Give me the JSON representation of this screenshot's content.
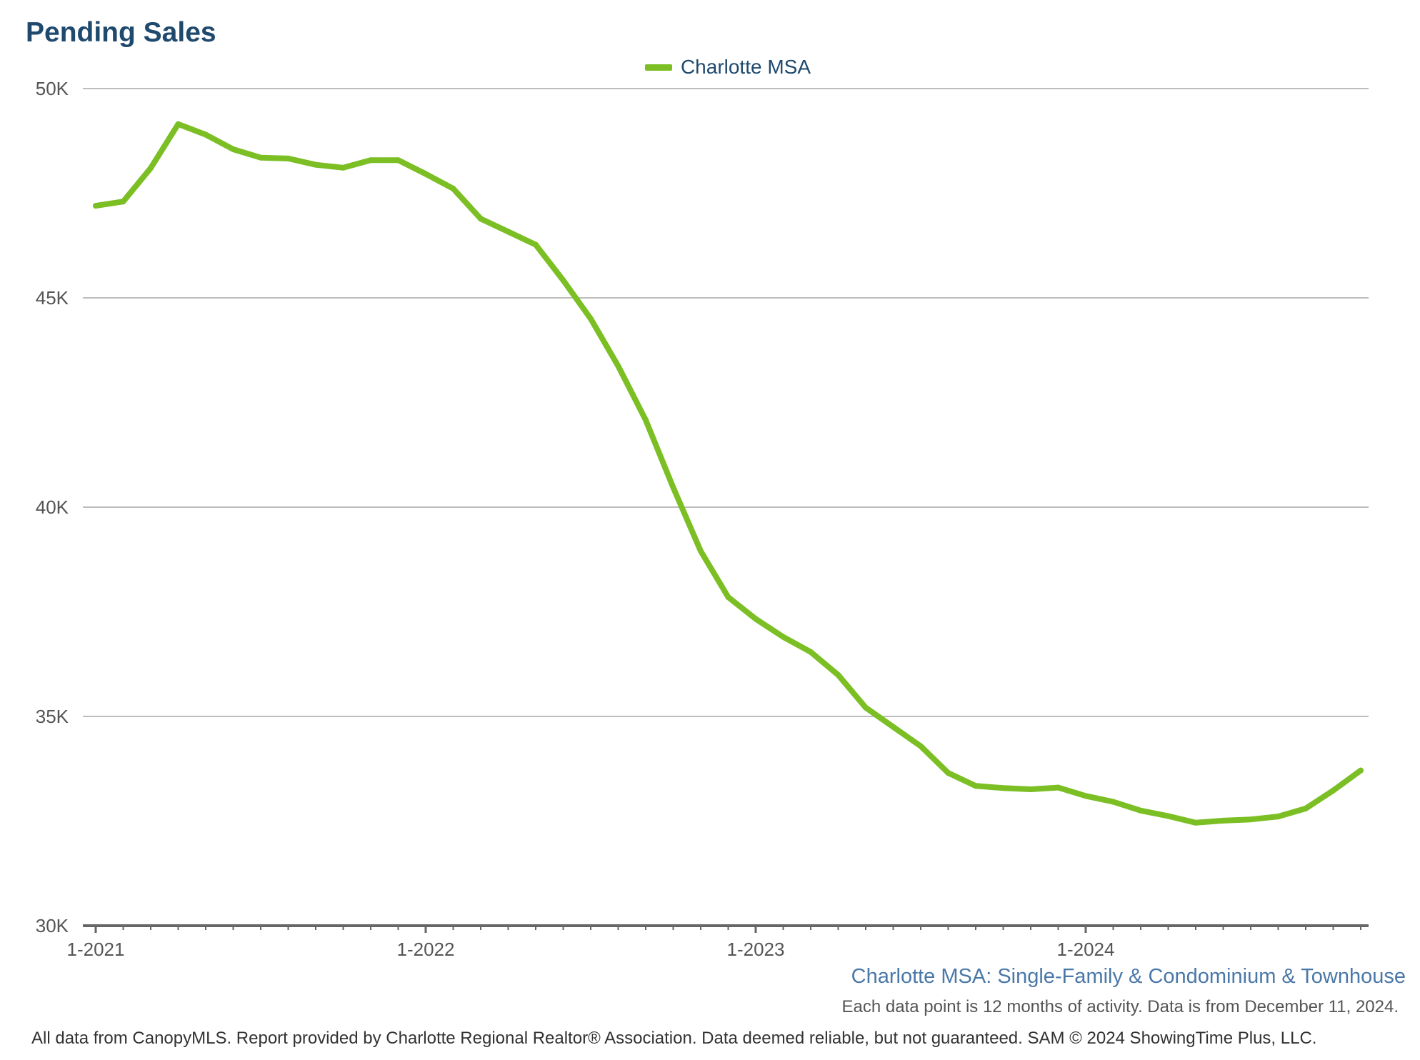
{
  "chart_data": {
    "type": "line",
    "title": "Pending Sales",
    "subtitle": "Charlotte MSA: Single-Family & Condominium & Townhouse",
    "note": "Each data point is 12 months of activity. Data is from December 11, 2024.",
    "footer": "All data from CanopyMLS. Report provided by Charlotte Regional Realtor® Association. Data deemed reliable, but not guaranteed. SAM © 2024 ShowingTime Plus, LLC.",
    "ylim": [
      30000,
      50000
    ],
    "yticks": [
      30000,
      35000,
      40000,
      45000,
      50000
    ],
    "ytick_labels": [
      "30K",
      "35K",
      "40K",
      "45K",
      "50K"
    ],
    "xticks": [
      "1-2021",
      "1-2022",
      "1-2023",
      "1-2024"
    ],
    "grid": true,
    "legend_position": "top-center",
    "colors": {
      "series": "#7bbf24",
      "title": "#1f4a6e",
      "subtitle": "#4a78a8"
    },
    "x": [
      "2021-01",
      "2021-02",
      "2021-03",
      "2021-04",
      "2021-05",
      "2021-06",
      "2021-07",
      "2021-08",
      "2021-09",
      "2021-10",
      "2021-11",
      "2021-12",
      "2022-01",
      "2022-02",
      "2022-03",
      "2022-04",
      "2022-05",
      "2022-06",
      "2022-07",
      "2022-08",
      "2022-09",
      "2022-10",
      "2022-11",
      "2022-12",
      "2023-01",
      "2023-02",
      "2023-03",
      "2023-04",
      "2023-05",
      "2023-06",
      "2023-07",
      "2023-08",
      "2023-09",
      "2023-10",
      "2023-11",
      "2023-12",
      "2024-01",
      "2024-02",
      "2024-03",
      "2024-04",
      "2024-05",
      "2024-06",
      "2024-07",
      "2024-08",
      "2024-09",
      "2024-10",
      "2024-11"
    ],
    "series": [
      {
        "name": "Charlotte MSA",
        "values": [
          47200,
          47300,
          48100,
          49150,
          48900,
          48550,
          48350,
          48330,
          48180,
          48110,
          48290,
          48290,
          47960,
          47610,
          46890,
          46580,
          46270,
          45420,
          44500,
          43370,
          42080,
          40470,
          38950,
          37850,
          37330,
          36900,
          36540,
          35990,
          35210,
          34750,
          34290,
          33650,
          33340,
          33290,
          33260,
          33300,
          33100,
          32960,
          32750,
          32620,
          32460,
          32510,
          32540,
          32610,
          32800,
          33230,
          33710
        ]
      }
    ]
  }
}
